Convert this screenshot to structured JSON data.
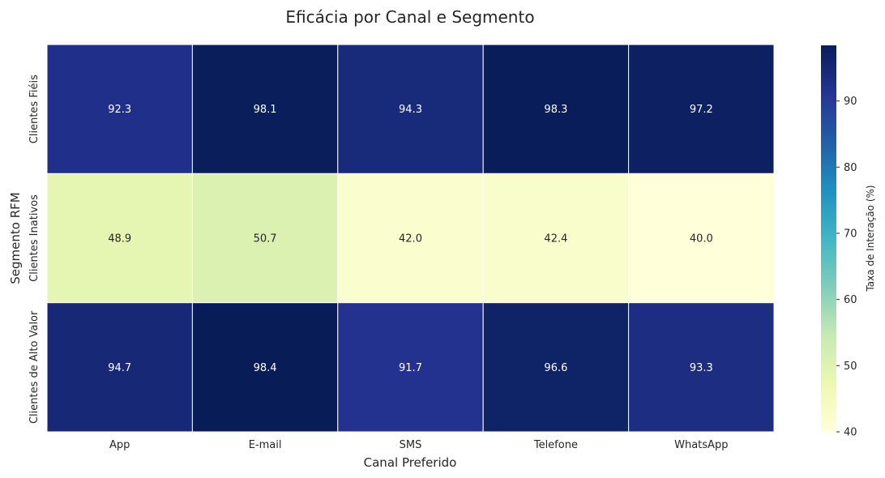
{
  "chart_data": {
    "type": "heatmap",
    "title": "Eficácia por Canal e Segmento",
    "xlabel": "Canal Preferido",
    "ylabel": "Segmento RFM",
    "x_categories": [
      "App",
      "E-mail",
      "SMS",
      "Telefone",
      "WhatsApp"
    ],
    "y_categories": [
      "Clientes Fiéis",
      "Clientes Inativos",
      "Clientes de Alto Valor"
    ],
    "values": [
      [
        92.3,
        98.1,
        94.3,
        98.3,
        97.2
      ],
      [
        48.9,
        50.7,
        42.0,
        42.4,
        40.0
      ],
      [
        94.7,
        98.4,
        91.7,
        96.6,
        93.3
      ]
    ],
    "colorbar": {
      "label": "Taxa de Interação (%)",
      "min": 40,
      "max": 98.4,
      "ticks": [
        40,
        50,
        60,
        70,
        80,
        90
      ],
      "colormap": "YlGnBu"
    },
    "grid": false
  }
}
